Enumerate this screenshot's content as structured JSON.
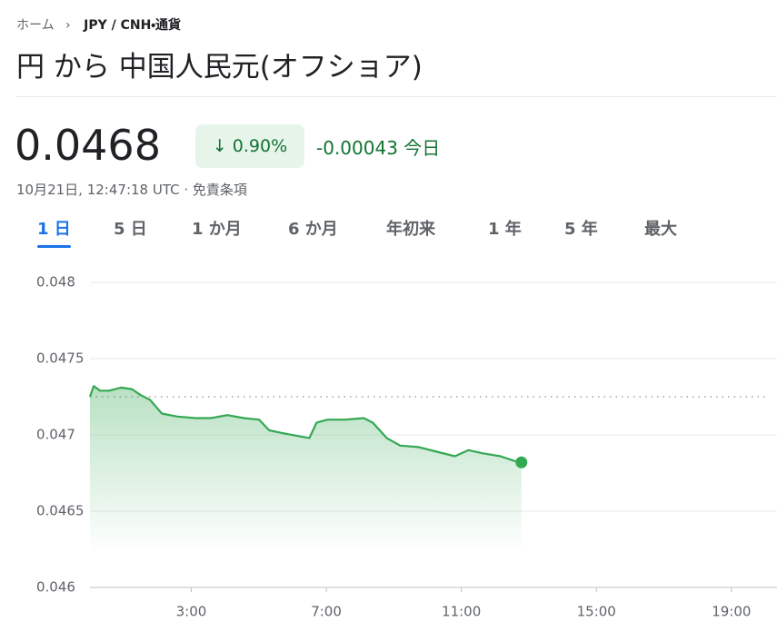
{
  "breadcrumb": {
    "home": "ホーム",
    "current": "JPY / CNH・通貨"
  },
  "header": {
    "title": "円 から 中国人民元(オフショア)"
  },
  "quote": {
    "price": "0.0468",
    "change_percent": "0.90%",
    "change": "-0.00043",
    "period": "今日",
    "timestamp": "10月21日, 12:47:18 UTC",
    "disclaimer": "免責条項"
  },
  "tabs": {
    "items": [
      "1 日",
      "5 日",
      "1 か月",
      "6 か月",
      "年初来",
      "1 年",
      "5 年",
      "最大"
    ],
    "selected": 0
  },
  "chart_data": {
    "type": "line",
    "color": "#34a853",
    "x": [
      0,
      0.11,
      0.3,
      0.56,
      0.92,
      1.24,
      1.51,
      1.78,
      2.13,
      2.59,
      3.13,
      3.58,
      4.07,
      4.56,
      5.01,
      5.31,
      5.74,
      6.23,
      6.5,
      6.71,
      7.03,
      7.57,
      8.11,
      8.38,
      8.79,
      9.19,
      9.73,
      10.27,
      10.81,
      11.21,
      11.62,
      12.16,
      12.56,
      12.78
    ],
    "values": [
      0.04725,
      0.04732,
      0.04729,
      0.04729,
      0.04731,
      0.0473,
      0.04726,
      0.04723,
      0.04714,
      0.04712,
      0.04711,
      0.04711,
      0.04713,
      0.04711,
      0.0471,
      0.04703,
      0.04701,
      0.04699,
      0.04698,
      0.04708,
      0.0471,
      0.0471,
      0.04711,
      0.04708,
      0.04698,
      0.04693,
      0.04692,
      0.04689,
      0.04686,
      0.0469,
      0.04688,
      0.04686,
      0.04683,
      0.04682
    ],
    "previous_close": 0.04725,
    "xlim": [
      0,
      20.35
    ],
    "xticks": [
      {
        "value": 3,
        "label": "3:00"
      },
      {
        "value": 7,
        "label": "7:00"
      },
      {
        "value": 11,
        "label": "11:00"
      },
      {
        "value": 15,
        "label": "15:00"
      },
      {
        "value": 19,
        "label": "19:00"
      }
    ],
    "ylim": [
      0.046,
      0.048
    ],
    "yticks": [
      0.046,
      0.0465,
      0.047,
      0.0475,
      0.048
    ],
    "grid": true
  }
}
